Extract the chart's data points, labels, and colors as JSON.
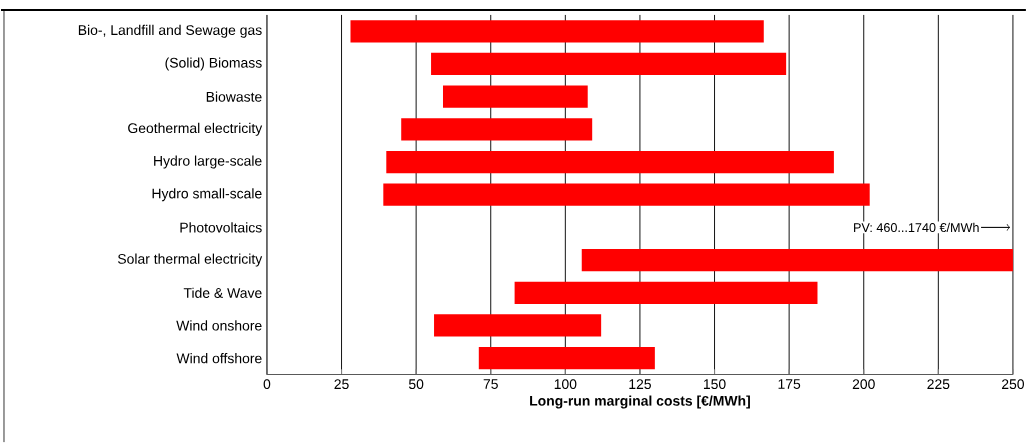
{
  "chart_data": {
    "type": "bar",
    "orientation": "horizontal",
    "xlabel": "Long-run marginal costs [€/MWh]",
    "categories": [
      "Bio-, Landfill and Sewage gas",
      "(Solid) Biomass",
      "Biowaste",
      "Geothermal electricity",
      "Hydro large-scale",
      "Hydro small-scale",
      "Photovoltaics",
      "Solar thermal electricity",
      "Tide & Wave",
      "Wind onshore",
      "Wind offshore"
    ],
    "base": [
      28,
      55,
      59,
      45,
      40,
      39,
      null,
      105.5,
      83,
      56,
      71
    ],
    "values": [
      138.5,
      119,
      48.5,
      64,
      150,
      163,
      null,
      144.5,
      101.5,
      56,
      59
    ],
    "color": "#ff0000",
    "xlim": [
      0,
      250
    ],
    "xticks": [
      0,
      25,
      50,
      75,
      100,
      125,
      150,
      175,
      200,
      225,
      250
    ],
    "grid": "x",
    "annotations": [
      "PV: 460...1740 €/MWh"
    ]
  }
}
